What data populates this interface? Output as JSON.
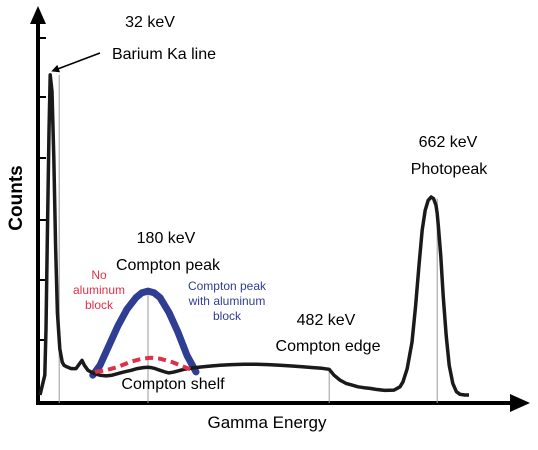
{
  "chart_data": {
    "type": "line",
    "title": "",
    "xlabel": "Gamma Energy",
    "ylabel": "Counts",
    "ylim": [
      0,
      100
    ],
    "grid": false,
    "legend": "none",
    "colors": {
      "spectrum": "#1a1a1a",
      "with_aluminum": "#2f3e93",
      "no_aluminum": "#e03048",
      "arrow": "#000000"
    },
    "series": [
      {
        "x": [
          0,
          8,
          10,
          12,
          15,
          17,
          20,
          23,
          26,
          29,
          33,
          37,
          40,
          45,
          52,
          60,
          66,
          70,
          74,
          80,
          90,
          100,
          110,
          120,
          130,
          140,
          152,
          162,
          172,
          180,
          185,
          192,
          200,
          208,
          215,
          222,
          230,
          240,
          255,
          270,
          285,
          300,
          320,
          340,
          360,
          380,
          400,
          420,
          440,
          455,
          470,
          482,
          490,
          500,
          510,
          520,
          530,
          540,
          550,
          560,
          575,
          590,
          600,
          605,
          612,
          620,
          626,
          632,
          637,
          642,
          647,
          652,
          656,
          660,
          662,
          664,
          668,
          672,
          677,
          682,
          688,
          694,
          700,
          708,
          715
        ],
        "values": [
          0,
          6,
          20,
          45,
          80,
          97,
          92,
          72,
          45,
          25,
          14,
          10,
          9,
          8.5,
          8,
          8,
          9.5,
          10.5,
          9,
          7.5,
          6.5,
          6,
          5.8,
          6,
          6.5,
          7,
          7.5,
          8,
          8.3,
          8.4,
          8.3,
          8,
          7.5,
          7,
          6.7,
          6.9,
          7.3,
          7.8,
          8.2,
          8.5,
          8.8,
          9,
          9.2,
          9.3,
          9.3,
          9.2,
          9,
          8.8,
          8.5,
          8.3,
          8.1,
          7.8,
          6,
          4.5,
          3.5,
          3,
          2.5,
          2.2,
          2,
          1.7,
          1.4,
          1.5,
          2.5,
          4,
          8,
          16,
          27,
          40,
          50,
          56,
          59,
          60,
          59.5,
          57.5,
          55,
          51,
          42,
          30,
          18,
          9,
          3.5,
          1,
          0.2,
          0,
          0
        ]
      },
      {
        "name": "Compton peak with aluminum block",
        "x": [
          88,
          100,
          115,
          130,
          145,
          160,
          170,
          180,
          190,
          200,
          215,
          230,
          245,
          260
        ],
        "values": [
          6,
          9,
          15,
          21,
          26,
          29.5,
          31,
          31.5,
          31,
          29.5,
          25,
          19,
          12,
          7
        ]
      },
      {
        "name": "No aluminum block",
        "x": [
          92,
          110,
          130,
          150,
          170,
          185,
          200,
          220,
          240,
          255
        ],
        "values": [
          7,
          7.5,
          8.5,
          10,
          11,
          11.3,
          11,
          10,
          8.5,
          7.5
        ]
      }
    ],
    "markers": [
      {
        "x": 32,
        "y": 97,
        "top": 97
      },
      {
        "x": 180,
        "y": 0,
        "top": 31.5
      },
      {
        "x": 482,
        "y": 0,
        "top": 8
      },
      {
        "x": 662,
        "y": 0,
        "top": 59.5
      }
    ],
    "annotations": {
      "barium": [
        "32 keV",
        "Barium Ka line"
      ],
      "compton_peak": [
        "180 keV",
        "Compton peak"
      ],
      "compton_edge": [
        "482 keV",
        "Compton edge"
      ],
      "photopeak": [
        "662 keV",
        "Photopeak"
      ],
      "compton_shelf": "Compton shelf",
      "no_aluminum": [
        "No",
        "aluminum",
        "block"
      ],
      "with_aluminum": [
        "Compton peak",
        "with aluminum",
        "block"
      ]
    }
  }
}
